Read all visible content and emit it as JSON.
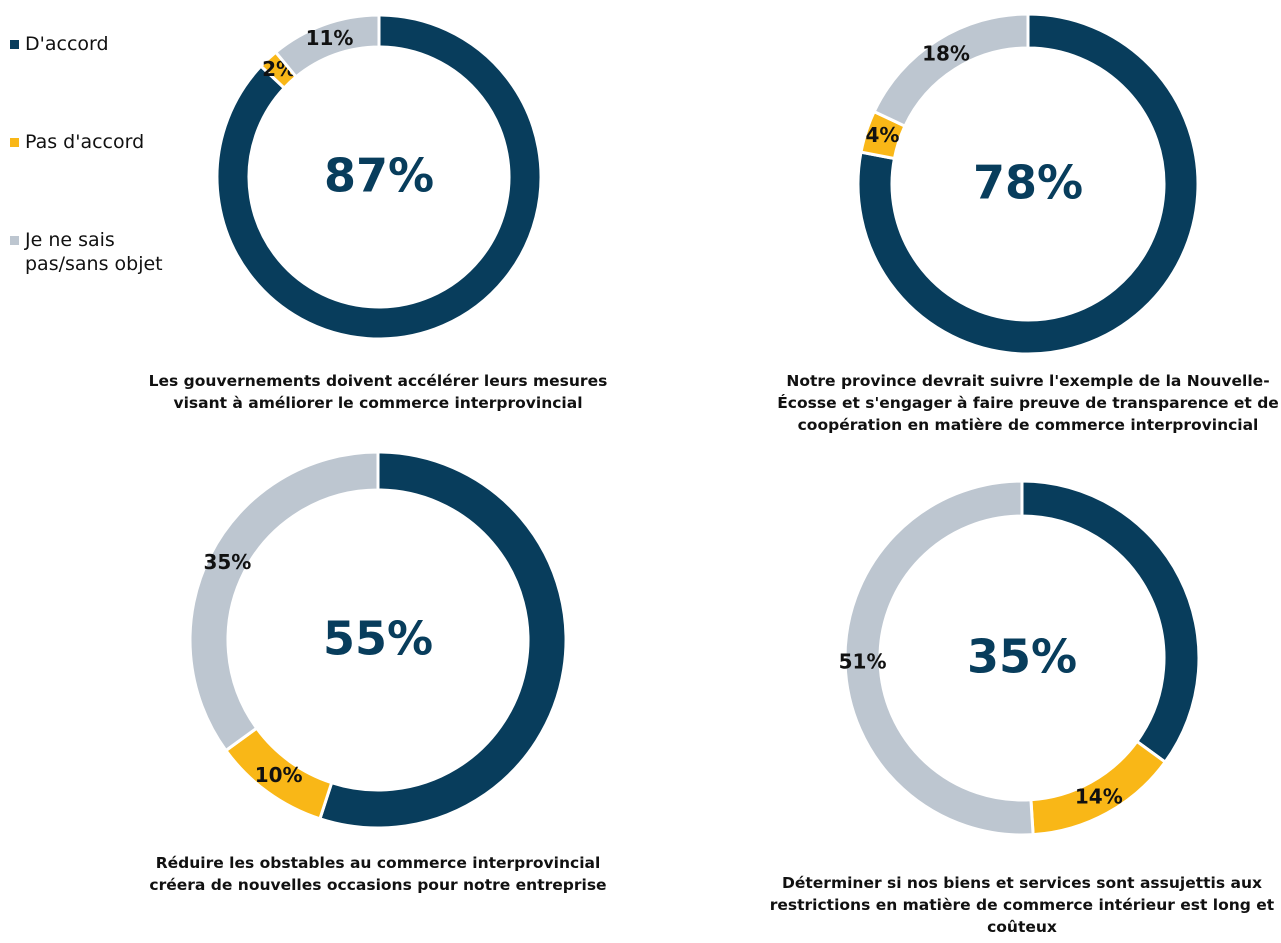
{
  "legend": {
    "labels": [
      "D'accord",
      "Pas d'accord",
      "Je ne sais pas/sans objet"
    ],
    "colors": [
      "#083d5c",
      "#f9b717",
      "#bdc6d0"
    ]
  },
  "chart_data": [
    {
      "type": "pie",
      "title": "Les gouvernements doivent accélérer leurs mesures visant à améliorer le commerce interprovincial",
      "values": [
        87,
        2,
        11
      ],
      "value_labels": [
        "87%",
        "2%",
        "11%"
      ]
    },
    {
      "type": "pie",
      "title": "Notre province devrait suivre l'exemple de la Nouvelle-Écosse et s'engager à faire preuve de transparence et de coopération en matière de commerce interprovincial",
      "values": [
        78,
        4,
        18
      ],
      "value_labels": [
        "78%",
        "4%",
        "18%"
      ]
    },
    {
      "type": "pie",
      "title": "Réduire les obstables au commerce interprovincial créera de nouvelles occasions pour notre entreprise",
      "values": [
        55,
        10,
        35
      ],
      "value_labels": [
        "55%",
        "10%",
        "35%"
      ]
    },
    {
      "type": "pie",
      "title": "Déterminer si nos biens et services sont assujettis aux restrictions en matière de commerce intérieur est long et coûteux",
      "values": [
        35,
        14,
        51
      ],
      "value_labels": [
        "35%",
        "14%",
        "51%"
      ]
    }
  ]
}
